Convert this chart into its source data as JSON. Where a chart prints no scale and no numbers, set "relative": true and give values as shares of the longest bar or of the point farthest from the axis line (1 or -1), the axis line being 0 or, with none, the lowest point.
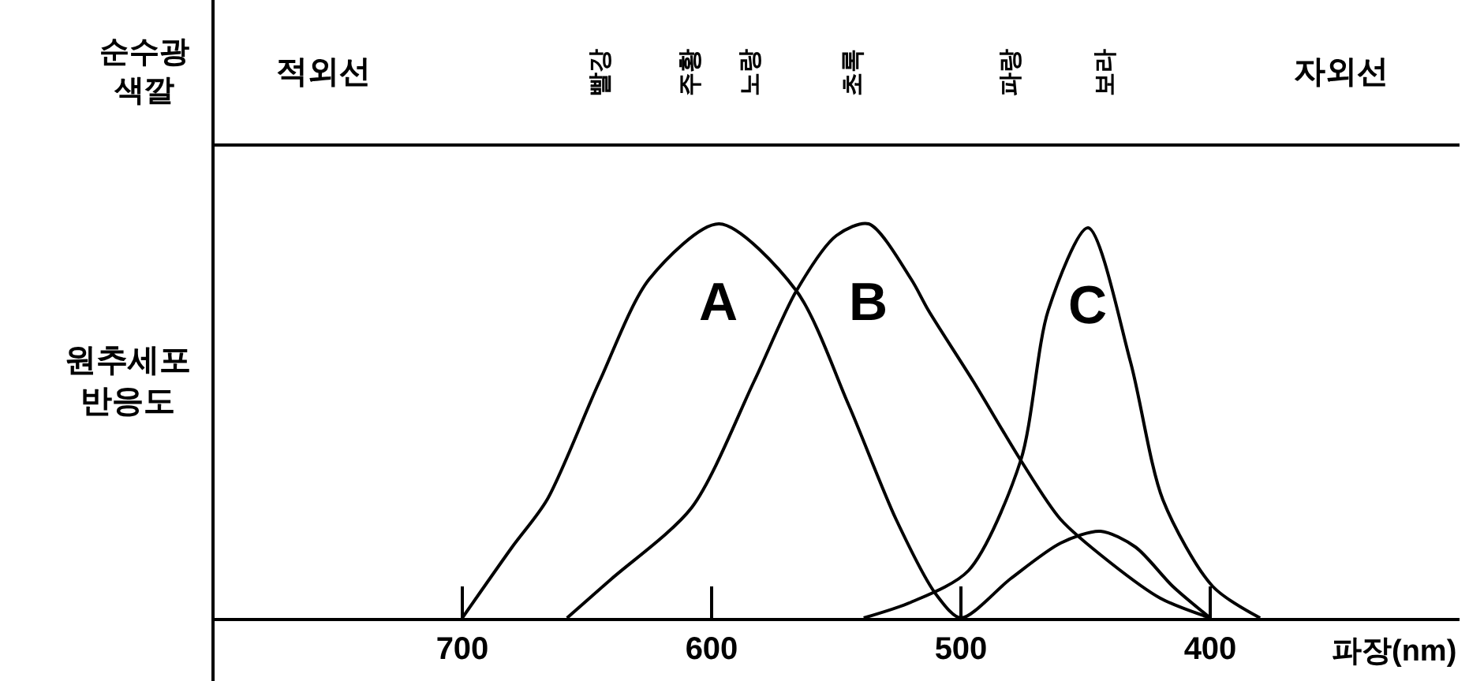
{
  "chart_data": {
    "type": "line",
    "relative": true,
    "xlabel": "파장(nm)",
    "ylabel": "원추세포 반응도",
    "xlim": [
      800,
      300
    ],
    "xticks": [
      700,
      600,
      500,
      400
    ],
    "annotations": [
      "순수광 색깔",
      "적외선",
      "빨강",
      "주황",
      "노랑",
      "초록",
      "파랑",
      "보라",
      "자외선"
    ],
    "grid": false,
    "legend": false,
    "marker": "none",
    "line_style": "solid",
    "series": [
      {
        "name": "A",
        "color": "#000000",
        "x": [
          700,
          680,
          666,
          645,
          625,
          597,
          566,
          545,
          526,
          510,
          500,
          480,
          460,
          444,
          430,
          415,
          400
        ],
        "values": [
          0,
          0.18,
          0.3,
          0.6,
          0.86,
          1,
          0.83,
          0.54,
          0.25,
          0.06,
          0,
          0.1,
          0.19,
          0.22,
          0.18,
          0.08,
          0
        ]
      },
      {
        "name": "B",
        "color": "#000000",
        "x": [
          658,
          640,
          608,
          583,
          566,
          550,
          537,
          520,
          513,
          495,
          476,
          460,
          440,
          420,
          400
        ],
        "values": [
          0,
          0.1,
          0.28,
          0.6,
          0.83,
          0.97,
          1,
          0.86,
          0.78,
          0.6,
          0.4,
          0.25,
          0.14,
          0.05,
          0
        ]
      },
      {
        "name": "C",
        "color": "#000000",
        "x": [
          539,
          520,
          497,
          476,
          465,
          449,
          432,
          419,
          399,
          380
        ],
        "values": [
          0,
          0.04,
          0.12,
          0.4,
          0.78,
          0.99,
          0.65,
          0.3,
          0.08,
          0
        ]
      }
    ]
  }
}
